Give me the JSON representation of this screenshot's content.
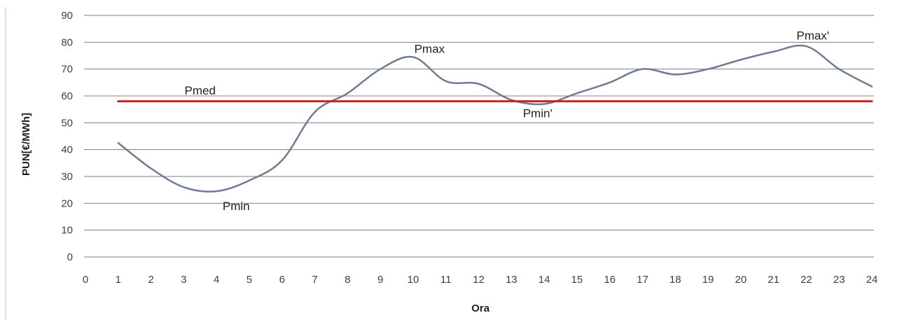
{
  "chart_data": {
    "type": "line",
    "title": "",
    "xlabel": "Ora",
    "ylabel": "PUN[€/MWh]",
    "xlim": [
      0,
      24
    ],
    "ylim": [
      0,
      90
    ],
    "x_ticks": [
      "0",
      "1",
      "2",
      "3",
      "4",
      "5",
      "6",
      "7",
      "8",
      "9",
      "10",
      "11",
      "12",
      "13",
      "14",
      "15",
      "16",
      "17",
      "18",
      "19",
      "20",
      "21",
      "22",
      "23",
      "24"
    ],
    "y_ticks": [
      "0",
      "10",
      "20",
      "30",
      "40",
      "50",
      "60",
      "70",
      "80",
      "90"
    ],
    "grid": true,
    "legend": "none",
    "series": [
      {
        "color": "#6d7d96",
        "x": [
          1,
          2,
          3,
          4,
          5,
          6,
          7,
          8,
          9,
          10,
          11,
          12,
          13,
          14,
          15,
          16,
          17,
          18,
          19,
          20,
          21,
          22,
          23,
          24
        ],
        "y": [
          42.5,
          33,
          26,
          24.5,
          28.5,
          36,
          54,
          61,
          70,
          74.5,
          65.5,
          64.5,
          58.5,
          57,
          61,
          65,
          70,
          68,
          70,
          73.5,
          76.5,
          78.5,
          70,
          63.5
        ]
      },
      {
        "color": "#cc2222",
        "x": [
          1,
          24
        ],
        "y": [
          58,
          58
        ]
      }
    ],
    "annotations": [
      {
        "text": "Pmed",
        "x": 3.5,
        "y": 60.5
      },
      {
        "text": "Pmin",
        "x": 4.6,
        "y": 17.5
      },
      {
        "text": "Pmax",
        "x": 10.5,
        "y": 76
      },
      {
        "text": "Pmin'",
        "x": 13.8,
        "y": 52
      },
      {
        "text": "Pmax'",
        "x": 22.2,
        "y": 81
      }
    ]
  }
}
